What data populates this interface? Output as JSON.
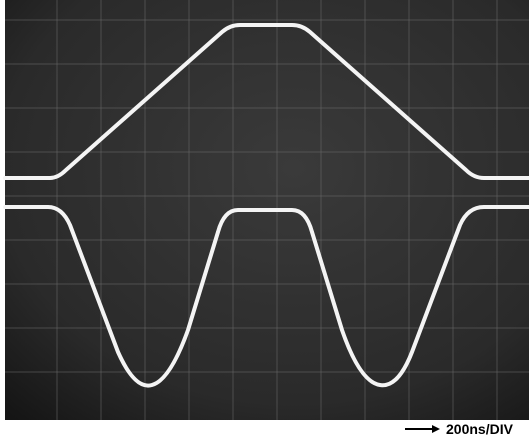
{
  "caption": "200ns/DIV"
}
